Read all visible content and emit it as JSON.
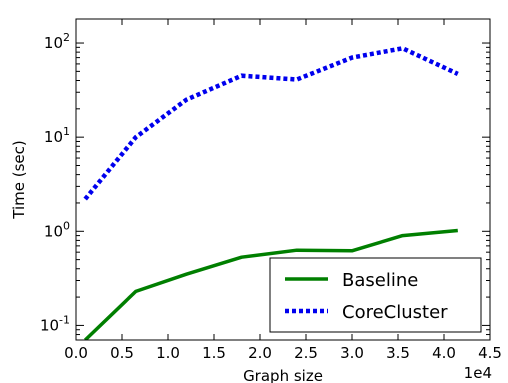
{
  "chart_data": {
    "type": "line",
    "title": "",
    "xlabel": "Graph size",
    "ylabel": "Time (sec)",
    "x_multiplier_label": "1e4",
    "x_ticks": [
      "0.0",
      "0.5",
      "1.0",
      "1.5",
      "2.0",
      "2.5",
      "3.0",
      "3.5",
      "4.0",
      "4.5"
    ],
    "x_tick_values": [
      0,
      5000,
      10000,
      15000,
      20000,
      25000,
      30000,
      35000,
      40000,
      45000
    ],
    "xlim": [
      0,
      45000
    ],
    "y_scale": "log",
    "ylim": [
      0.07,
      180
    ],
    "y_ticks": [
      {
        "value": 0.1,
        "base": "10",
        "exp": "-1"
      },
      {
        "value": 1,
        "base": "10",
        "exp": "0"
      },
      {
        "value": 10,
        "base": "10",
        "exp": "1"
      },
      {
        "value": 100,
        "base": "10",
        "exp": "2"
      }
    ],
    "legend_position": "lower-right",
    "grid": false,
    "series": [
      {
        "name": "Baseline",
        "color": "#007f00",
        "style": "solid",
        "x": [
          1000,
          6500,
          12000,
          18000,
          24000,
          30000,
          35500,
          41500
        ],
        "y": [
          0.07,
          0.23,
          0.35,
          0.53,
          0.63,
          0.62,
          0.9,
          1.02
        ]
      },
      {
        "name": "CoreCluster",
        "color": "#0000ee",
        "style": "dotted",
        "x": [
          1000,
          6500,
          12000,
          18000,
          24000,
          30000,
          35500,
          41500
        ],
        "y": [
          2.2,
          10,
          25,
          45,
          41,
          70,
          88,
          47
        ]
      }
    ]
  }
}
